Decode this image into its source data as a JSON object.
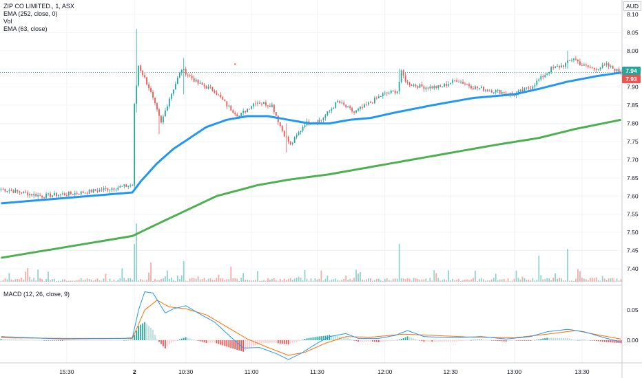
{
  "header": {
    "symbol_line": "ZIP CO LIMITED., 1, ASX",
    "ema252": "EMA (252, close, 0)",
    "vol": "Vol",
    "ema63": "EMA (63, close)",
    "macd": "MACD (12, 26, close, 9)",
    "currency": "AUD"
  },
  "price_tags": {
    "last": "7.94",
    "prev": "7.93",
    "last_color": "#26a69a",
    "prev_color": "#ef5350"
  },
  "chart_data": [
    {
      "type": "candlestick",
      "title": "ZIP CO LIMITED., 1, ASX",
      "y_axis_ticks": [
        "8.10",
        "8.05",
        "8.00",
        "7.95",
        "7.90",
        "7.85",
        "7.80",
        "7.75",
        "7.70",
        "7.65",
        "7.60",
        "7.55",
        "7.50",
        "7.45",
        "7.40"
      ],
      "ylim": [
        7.37,
        8.12
      ],
      "x_tick_labels": [
        "15:30",
        "2",
        "10:30",
        "11:00",
        "11:30",
        "12:00",
        "12:30",
        "13:00",
        "13:30"
      ],
      "close_anchors": [
        {
          "i": 0,
          "v": 7.62
        },
        {
          "i": 20,
          "v": 7.6
        },
        {
          "i": 40,
          "v": 7.61
        },
        {
          "i": 64,
          "v": 7.63
        },
        {
          "i": 65,
          "v": 7.85
        },
        {
          "i": 67,
          "v": 7.96
        },
        {
          "i": 72,
          "v": 7.9
        },
        {
          "i": 78,
          "v": 7.8
        },
        {
          "i": 82,
          "v": 7.87
        },
        {
          "i": 88,
          "v": 7.95
        },
        {
          "i": 96,
          "v": 7.91
        },
        {
          "i": 104,
          "v": 7.89
        },
        {
          "i": 110,
          "v": 7.85
        },
        {
          "i": 116,
          "v": 7.82
        },
        {
          "i": 124,
          "v": 7.86
        },
        {
          "i": 132,
          "v": 7.85
        },
        {
          "i": 137,
          "v": 7.78
        },
        {
          "i": 141,
          "v": 7.74
        },
        {
          "i": 148,
          "v": 7.8
        },
        {
          "i": 156,
          "v": 7.81
        },
        {
          "i": 164,
          "v": 7.86
        },
        {
          "i": 172,
          "v": 7.83
        },
        {
          "i": 178,
          "v": 7.85
        },
        {
          "i": 186,
          "v": 7.88
        },
        {
          "i": 193,
          "v": 7.89
        },
        {
          "i": 195,
          "v": 7.94
        },
        {
          "i": 198,
          "v": 7.91
        },
        {
          "i": 206,
          "v": 7.9
        },
        {
          "i": 214,
          "v": 7.9
        },
        {
          "i": 222,
          "v": 7.92
        },
        {
          "i": 230,
          "v": 7.9
        },
        {
          "i": 240,
          "v": 7.89
        },
        {
          "i": 250,
          "v": 7.88
        },
        {
          "i": 258,
          "v": 7.9
        },
        {
          "i": 262,
          "v": 7.92
        },
        {
          "i": 268,
          "v": 7.95
        },
        {
          "i": 274,
          "v": 7.96
        },
        {
          "i": 279,
          "v": 7.98
        },
        {
          "i": 283,
          "v": 7.96
        },
        {
          "i": 289,
          "v": 7.95
        },
        {
          "i": 295,
          "v": 7.96
        },
        {
          "i": 302,
          "v": 7.94
        }
      ],
      "spikes": [
        {
          "i": 66,
          "high": 8.06,
          "low": 7.83
        },
        {
          "i": 77,
          "high": 7.84,
          "low": 7.77
        },
        {
          "i": 89,
          "high": 7.98,
          "low": 7.88
        },
        {
          "i": 139,
          "high": 7.8,
          "low": 7.72
        },
        {
          "i": 194,
          "high": 7.95,
          "low": 7.88
        },
        {
          "i": 276,
          "high": 8.0,
          "low": 7.95
        }
      ],
      "series": [
        {
          "name": "EMA (252, close, 0)",
          "color": "#2196f3",
          "points": [
            {
              "i": 0,
              "v": 7.58
            },
            {
              "i": 64,
              "v": 7.61
            },
            {
              "i": 68,
              "v": 7.64
            },
            {
              "i": 76,
              "v": 7.69
            },
            {
              "i": 84,
              "v": 7.73
            },
            {
              "i": 92,
              "v": 7.76
            },
            {
              "i": 100,
              "v": 7.79
            },
            {
              "i": 110,
              "v": 7.81
            },
            {
              "i": 120,
              "v": 7.82
            },
            {
              "i": 130,
              "v": 7.82
            },
            {
              "i": 140,
              "v": 7.81
            },
            {
              "i": 150,
              "v": 7.8
            },
            {
              "i": 160,
              "v": 7.8
            },
            {
              "i": 170,
              "v": 7.81
            },
            {
              "i": 180,
              "v": 7.815
            },
            {
              "i": 192,
              "v": 7.83
            },
            {
              "i": 210,
              "v": 7.85
            },
            {
              "i": 230,
              "v": 7.87
            },
            {
              "i": 250,
              "v": 7.88
            },
            {
              "i": 262,
              "v": 7.895
            },
            {
              "i": 276,
              "v": 7.915
            },
            {
              "i": 290,
              "v": 7.93
            },
            {
              "i": 302,
              "v": 7.94
            }
          ]
        },
        {
          "name": "EMA (63, close)",
          "color": "#4caf50",
          "points": [
            {
              "i": 0,
              "v": 7.43
            },
            {
              "i": 64,
              "v": 7.49
            },
            {
              "i": 75,
              "v": 7.52
            },
            {
              "i": 90,
              "v": 7.56
            },
            {
              "i": 105,
              "v": 7.6
            },
            {
              "i": 125,
              "v": 7.63
            },
            {
              "i": 140,
              "v": 7.645
            },
            {
              "i": 160,
              "v": 7.66
            },
            {
              "i": 180,
              "v": 7.68
            },
            {
              "i": 200,
              "v": 7.7
            },
            {
              "i": 220,
              "v": 7.72
            },
            {
              "i": 240,
              "v": 7.74
            },
            {
              "i": 262,
              "v": 7.76
            },
            {
              "i": 280,
              "v": 7.785
            },
            {
              "i": 302,
              "v": 7.81
            }
          ]
        }
      ],
      "volume": {
        "n": 302,
        "spikes": [
          {
            "i": 66,
            "v": 0.85
          },
          {
            "i": 65,
            "v": 0.55
          },
          {
            "i": 194,
            "v": 0.55
          },
          {
            "i": 262,
            "v": 0.38
          },
          {
            "i": 276,
            "v": 0.48
          },
          {
            "i": 73,
            "v": 0.28
          },
          {
            "i": 89,
            "v": 0.3
          },
          {
            "i": 112,
            "v": 0.22
          },
          {
            "i": 13,
            "v": 0.2
          }
        ]
      }
    },
    {
      "type": "macd",
      "title": "MACD (12, 26, close, 9)",
      "y_axis_ticks": [
        "0.05",
        "0.00"
      ],
      "ylim": [
        -0.055,
        0.09
      ],
      "macd_line": [
        {
          "i": 0,
          "v": 0.006
        },
        {
          "i": 30,
          "v": 0.002
        },
        {
          "i": 60,
          "v": 0.003
        },
        {
          "i": 64,
          "v": 0.004
        },
        {
          "i": 67,
          "v": 0.05
        },
        {
          "i": 70,
          "v": 0.08
        },
        {
          "i": 74,
          "v": 0.078
        },
        {
          "i": 80,
          "v": 0.045
        },
        {
          "i": 84,
          "v": 0.052
        },
        {
          "i": 90,
          "v": 0.057
        },
        {
          "i": 96,
          "v": 0.045
        },
        {
          "i": 104,
          "v": 0.03
        },
        {
          "i": 112,
          "v": 0.005
        },
        {
          "i": 118,
          "v": -0.013
        },
        {
          "i": 126,
          "v": -0.012
        },
        {
          "i": 134,
          "v": -0.022
        },
        {
          "i": 140,
          "v": -0.032
        },
        {
          "i": 146,
          "v": -0.022
        },
        {
          "i": 154,
          "v": -0.005
        },
        {
          "i": 160,
          "v": 0.006
        },
        {
          "i": 168,
          "v": 0.011
        },
        {
          "i": 174,
          "v": 0.003
        },
        {
          "i": 184,
          "v": 0.003
        },
        {
          "i": 192,
          "v": 0.008
        },
        {
          "i": 198,
          "v": 0.016
        },
        {
          "i": 206,
          "v": 0.006
        },
        {
          "i": 220,
          "v": 0.004
        },
        {
          "i": 234,
          "v": 0.006
        },
        {
          "i": 246,
          "v": 0.002
        },
        {
          "i": 258,
          "v": 0.006
        },
        {
          "i": 266,
          "v": 0.014
        },
        {
          "i": 276,
          "v": 0.018
        },
        {
          "i": 284,
          "v": 0.014
        },
        {
          "i": 294,
          "v": 0.004
        },
        {
          "i": 302,
          "v": -0.003
        }
      ],
      "signal_line": [
        {
          "i": 0,
          "v": 0.004
        },
        {
          "i": 30,
          "v": 0.003
        },
        {
          "i": 64,
          "v": 0.003
        },
        {
          "i": 70,
          "v": 0.05
        },
        {
          "i": 76,
          "v": 0.066
        },
        {
          "i": 82,
          "v": 0.055
        },
        {
          "i": 90,
          "v": 0.052
        },
        {
          "i": 100,
          "v": 0.042
        },
        {
          "i": 110,
          "v": 0.022
        },
        {
          "i": 120,
          "v": 0.002
        },
        {
          "i": 130,
          "v": -0.012
        },
        {
          "i": 140,
          "v": -0.025
        },
        {
          "i": 148,
          "v": -0.02
        },
        {
          "i": 158,
          "v": -0.005
        },
        {
          "i": 168,
          "v": 0.006
        },
        {
          "i": 180,
          "v": 0.005
        },
        {
          "i": 196,
          "v": 0.01
        },
        {
          "i": 210,
          "v": 0.008
        },
        {
          "i": 230,
          "v": 0.005
        },
        {
          "i": 250,
          "v": 0.004
        },
        {
          "i": 266,
          "v": 0.01
        },
        {
          "i": 280,
          "v": 0.016
        },
        {
          "i": 292,
          "v": 0.008
        },
        {
          "i": 302,
          "v": 0.002
        }
      ]
    }
  ],
  "colors": {
    "up": "#26a69a",
    "down": "#ef5350",
    "macd": "#2196f3",
    "signal": "#ff6d00"
  }
}
